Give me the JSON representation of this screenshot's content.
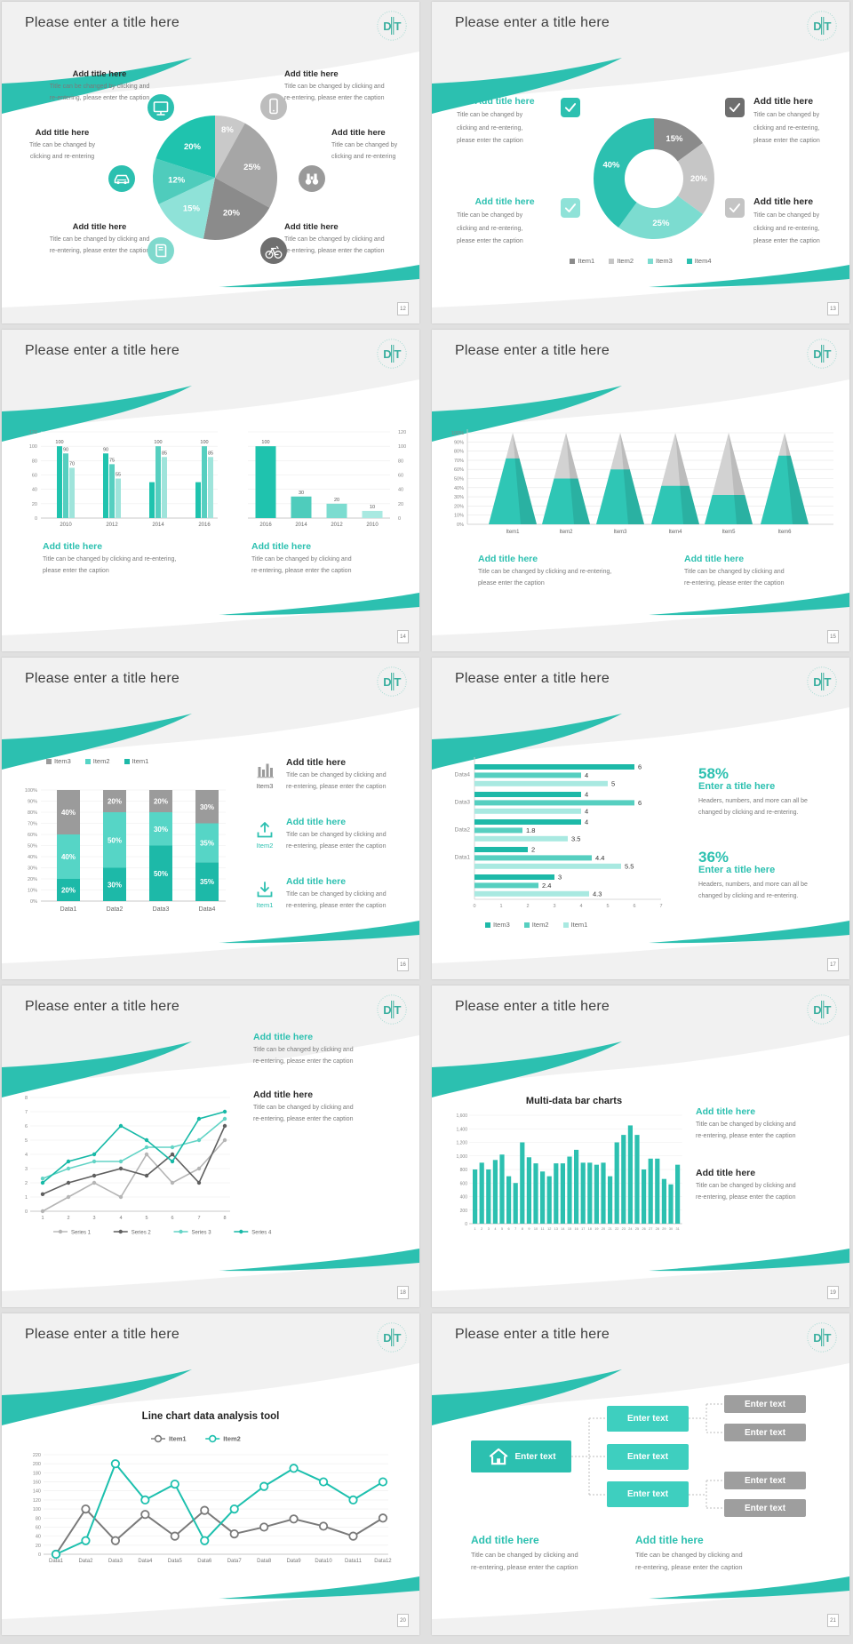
{
  "theme": {
    "accent": "#2cc0b0",
    "accent_mid": "#4fccbc",
    "accent_light": "#7cdcd0",
    "accent_lighter": "#a9e9e1",
    "gray_dark": "#6e6e6e",
    "gray_mid": "#9b9b9b",
    "gray_light": "#c7c7c7",
    "header_bg": "#f1f1f1",
    "title_color": "#3f3f3f",
    "caption_color": "#7a7a7a"
  },
  "strings": {
    "slide_title": "Please enter a title here",
    "add_title": "Add title here",
    "logo_monogram": "DT"
  },
  "pages": [
    "12",
    "13",
    "14",
    "15",
    "16",
    "17",
    "18",
    "19",
    "20",
    "21"
  ],
  "s1": {
    "callouts": [
      {
        "title": "Add title here",
        "lines": [
          "Title can be changed by clicking and",
          "re-entering, please enter the caption"
        ],
        "icon": "monitor",
        "icon_bg": "#2cc0b0"
      },
      {
        "title": "Add title here",
        "lines": [
          "Title can be changed by",
          "clicking and re-entering"
        ],
        "icon": "car",
        "icon_bg": "#2cc0b0"
      },
      {
        "title": "Add title here",
        "lines": [
          "Title can be changed by clicking and",
          "re-entering, please enter the caption"
        ],
        "icon": "book",
        "icon_bg": "#7fd9cd"
      },
      {
        "title": "Add title here",
        "lines": [
          "Title can be changed by clicking and",
          "re-entering, please enter the caption"
        ],
        "icon": "phone",
        "icon_bg": "#bdbdbd"
      },
      {
        "title": "Add title here",
        "lines": [
          "Title can be changed by",
          "clicking and re-entering"
        ],
        "icon": "binoculars",
        "icon_bg": "#9a9a9a"
      },
      {
        "title": "Add title here",
        "lines": [
          "Title can be changed by clicking and",
          "re-entering, please enter the caption"
        ],
        "icon": "bicycle",
        "icon_bg": "#6f6f6f"
      }
    ]
  },
  "s2": {
    "blocks": [
      {
        "title": "Add title here",
        "lines": [
          "Title can be changed by",
          "clicking and re-entering,",
          "please enter the caption"
        ],
        "icon": "check",
        "icon_bg": "#2cc0b0"
      },
      {
        "title": "Add title here",
        "lines": [
          "Title can be changed by",
          "clicking and re-entering,",
          "please enter the caption"
        ],
        "icon": "check",
        "icon_bg": "#6e6e6e"
      },
      {
        "title": "Add title here",
        "lines": [
          "Title can be changed by",
          "clicking and re-entering,",
          "please enter the caption"
        ],
        "icon": "check",
        "icon_bg": "#8fe2d8"
      },
      {
        "title": "Add title here",
        "lines": [
          "Title can be changed by",
          "clicking and re-entering,",
          "please enter the caption"
        ],
        "icon": "check",
        "icon_bg": "#c4c4c4"
      }
    ]
  },
  "s3": {
    "add1": {
      "title": "Add title here",
      "lines": [
        "Title can be changed by clicking and re-entering,",
        "please enter the caption"
      ]
    },
    "add2": {
      "title": "Add title here",
      "lines": [
        "Title can be changed by clicking and",
        "re-entering, please enter the caption"
      ]
    }
  },
  "s4": {
    "add1": {
      "title": "Add title here",
      "lines": [
        "Title can be changed by clicking and re-entering,",
        "please enter the caption"
      ]
    },
    "add2": {
      "title": "Add title here",
      "lines": [
        "Title can be changed by clicking and",
        "re-entering, please enter the caption"
      ]
    }
  },
  "s5": {
    "items": [
      {
        "label": "Item3",
        "title": "Add title here",
        "lines": [
          "Title can be changed by clicking and",
          "re-entering, please enter the caption"
        ],
        "icon": "barchart",
        "icon_color": "#9b9b9b",
        "title_color": "dark"
      },
      {
        "label": "Item2",
        "title": "Add title here",
        "lines": [
          "Title can be changed by clicking and",
          "re-entering, please enter the caption"
        ],
        "icon": "upload",
        "icon_color": "#2cc0b0",
        "title_color": "teal"
      },
      {
        "label": "Item1",
        "title": "Add title here",
        "lines": [
          "Title can be changed by clicking and",
          "re-entering, please enter the caption"
        ],
        "icon": "download",
        "icon_color": "#2cc0b0",
        "title_color": "teal"
      }
    ]
  },
  "s6": {
    "stats": [
      {
        "value": "58%",
        "title": "Enter a title here",
        "lines": [
          "Headers, numbers, and more can all be",
          "changed by clicking and re-entering."
        ]
      },
      {
        "value": "36%",
        "title": "Enter a title here",
        "lines": [
          "Headers, numbers, and more can all be",
          "changed by clicking and re-entering."
        ]
      }
    ]
  },
  "s7": {
    "blocks": [
      {
        "title": "Add title here",
        "lines": [
          "Title can be changed by clicking and",
          "re-entering, please enter the caption"
        ]
      },
      {
        "title": "Add title here",
        "lines": [
          "Title can be changed by clicking and",
          "re-entering, please enter the caption"
        ]
      }
    ]
  },
  "s8": {
    "blocks": [
      {
        "title": "Add title here",
        "lines": [
          "Title can be changed by clicking and",
          "re-entering, please enter the caption"
        ]
      },
      {
        "title": "Add title here",
        "lines": [
          "Title can be changed by clicking and",
          "re-entering, please enter the caption"
        ]
      }
    ]
  },
  "s10": {
    "root": "Enter text",
    "l2": [
      "Enter text",
      "Enter text",
      "Enter text"
    ],
    "l3": [
      "Enter text",
      "Enter text",
      "Enter text",
      "Enter text"
    ],
    "add1": {
      "title": "Add title here",
      "lines": [
        "Title can be changed by clicking and",
        "re-entering, please enter the caption"
      ]
    },
    "add2": {
      "title": "Add title here",
      "lines": [
        "Title can be changed by clicking and",
        "re-entering, please enter the caption"
      ]
    }
  },
  "chart_data": [
    {
      "slide": 1,
      "type": "pie",
      "values": [
        8,
        25,
        20,
        15,
        12,
        20
      ],
      "labels": [
        "8%",
        "25%",
        "20%",
        "15%",
        "12%",
        "20%"
      ],
      "colors": [
        "#c9c9c9",
        "#a6a6a6",
        "#8b8b8b",
        "#8fe2d8",
        "#4fccbc",
        "#1fc3ae"
      ],
      "start": "top",
      "direction": "clockwise"
    },
    {
      "slide": 2,
      "type": "donut",
      "values": [
        15,
        20,
        25,
        40
      ],
      "labels": [
        "15%",
        "20%",
        "25%",
        "40%"
      ],
      "colors": [
        "#8b8b8b",
        "#c6c6c6",
        "#7cdcd0",
        "#2cc0b0"
      ],
      "legend": [
        "Item1",
        "Item2",
        "Item3",
        "Item4"
      ]
    },
    {
      "slide": 3,
      "type": "bar",
      "position": "left",
      "categories": [
        "2010",
        "2012",
        "2014",
        "2016"
      ],
      "series": [
        {
          "color": "#1fc3ae",
          "values": [
            100,
            90,
            50,
            50
          ],
          "labels": [
            "100",
            "90",
            "",
            ""
          ]
        },
        {
          "color": "#56cfc0",
          "values": [
            90,
            75,
            100,
            100
          ],
          "labels": [
            "90",
            "75",
            "100",
            "100"
          ]
        },
        {
          "color": "#9fe4db",
          "values": [
            70,
            55,
            85,
            85
          ],
          "labels": [
            "70",
            "55",
            "85",
            "85"
          ]
        }
      ],
      "ylim": [
        0,
        120
      ],
      "yticks": [
        0,
        20,
        40,
        60,
        80,
        100,
        120
      ],
      "axis_side": "left",
      "grid": true
    },
    {
      "slide": 3,
      "type": "bar",
      "position": "right",
      "categories": [
        "2016",
        "2014",
        "2012",
        "2010"
      ],
      "values": [
        100,
        30,
        20,
        10
      ],
      "labels": [
        "100",
        "30",
        "20",
        "10"
      ],
      "bar_colors": [
        "#1fc3ae",
        "#4fccbc",
        "#7cdcd0",
        "#a9e9e1"
      ],
      "ylim": [
        0,
        120
      ],
      "yticks": [
        0,
        20,
        40,
        60,
        80,
        100,
        120
      ],
      "axis_side": "right",
      "grid": true
    },
    {
      "slide": 4,
      "type": "pyramid",
      "categories": [
        "Item1",
        "Item2",
        "Item3",
        "Item4",
        "Item5",
        "Item6"
      ],
      "fill_pct": [
        72,
        50,
        60,
        42,
        32,
        75
      ],
      "ylim": [
        0,
        100
      ],
      "yticks": [
        "0%",
        "10%",
        "20%",
        "30%",
        "40%",
        "50%",
        "60%",
        "70%",
        "80%",
        "90%",
        "100%"
      ],
      "fill_color": "#2fc6b5",
      "rest_color": "#d2d2d2",
      "grid": true
    },
    {
      "slide": 5,
      "type": "stacked_bar",
      "categories": [
        "Data1",
        "Data2",
        "Data3",
        "Data4"
      ],
      "series": [
        {
          "name": "Item1",
          "color": "#1db9a8",
          "values": [
            20,
            30,
            50,
            35
          ]
        },
        {
          "name": "Item2",
          "color": "#56d5c6",
          "values": [
            40,
            50,
            30,
            35
          ]
        },
        {
          "name": "Item3",
          "color": "#9b9b9b",
          "values": [
            40,
            20,
            20,
            30
          ]
        }
      ],
      "ylim": [
        0,
        100
      ],
      "yticks": [
        "0%",
        "10%",
        "20%",
        "30%",
        "40%",
        "50%",
        "60%",
        "70%",
        "80%",
        "90%",
        "100%"
      ],
      "legend_order": [
        "Item3",
        "Item2",
        "Item1"
      ],
      "labels_suffix": "%",
      "grid": true
    },
    {
      "slide": 6,
      "type": "hbar",
      "group_labels": [
        "Data4",
        "Data3",
        "Data2",
        "Data1",
        ""
      ],
      "groups": [
        [
          6,
          4,
          5
        ],
        [
          4,
          6,
          4
        ],
        [
          4,
          1.8,
          3.5
        ],
        [
          2,
          4.4,
          5.5
        ],
        [
          3,
          2.4,
          4.3
        ]
      ],
      "colors": [
        "#1db9a8",
        "#56cfc0",
        "#a9e9e1"
      ],
      "xlim": [
        0,
        7
      ],
      "xticks": [
        0,
        1,
        2,
        3,
        4,
        5,
        6,
        7
      ],
      "legend": [
        "Item3",
        "Item2",
        "Item1"
      ],
      "grid": false
    },
    {
      "slide": 7,
      "type": "line",
      "x": [
        1,
        2,
        3,
        4,
        5,
        6,
        7,
        8
      ],
      "ylim": [
        0,
        8
      ],
      "yticks": [
        0,
        1,
        2,
        3,
        4,
        5,
        6,
        7,
        8
      ],
      "series": [
        {
          "name": "Series 1",
          "color": "#b5b5b5",
          "values": [
            0,
            1,
            2,
            1,
            4,
            2,
            3,
            5
          ]
        },
        {
          "name": "Series 2",
          "color": "#5f5f5f",
          "values": [
            1.2,
            2,
            2.5,
            3,
            2.5,
            4,
            2,
            6
          ]
        },
        {
          "name": "Series 3",
          "color": "#63d4c6",
          "values": [
            2.3,
            3,
            3.5,
            3.5,
            4.5,
            4.5,
            5,
            6.5
          ]
        },
        {
          "name": "Series 4",
          "color": "#17b9a7",
          "values": [
            2,
            3.5,
            4,
            6,
            5,
            3.5,
            6.5,
            7
          ]
        }
      ],
      "marker": "dot",
      "legend_position": "bottom",
      "grid": true
    },
    {
      "slide": 8,
      "type": "bar",
      "title": "Multi-data bar charts",
      "color": "#2cc0b0",
      "x_labels": [
        "1",
        "2",
        "3",
        "4",
        "5",
        "6",
        "7",
        "8",
        "9",
        "10",
        "11",
        "12",
        "13",
        "14",
        "15",
        "16",
        "17",
        "18",
        "19",
        "20",
        "21",
        "22",
        "23",
        "24",
        "25",
        "26",
        "27",
        "28",
        "29",
        "30",
        "31"
      ],
      "values": [
        800,
        900,
        800,
        940,
        1020,
        700,
        600,
        1200,
        980,
        890,
        770,
        700,
        890,
        890,
        990,
        1090,
        900,
        900,
        870,
        900,
        700,
        1200,
        1310,
        1450,
        1310,
        800,
        960,
        960,
        660,
        580,
        870
      ],
      "ylim": [
        0,
        1600
      ],
      "yticks": [
        "0",
        "200",
        "400",
        "600",
        "800",
        "1,000",
        "1,200",
        "1,400",
        "1,600"
      ],
      "grid": true
    },
    {
      "slide": 9,
      "type": "line",
      "title": "Line chart data analysis tool",
      "x_labels": [
        "Data1",
        "Data2",
        "Data3",
        "Data4",
        "Data5",
        "Data6",
        "Data7",
        "Data8",
        "Data9",
        "Data10",
        "Data11",
        "Data12"
      ],
      "ylim": [
        0,
        220
      ],
      "ytick_step": 20,
      "series": [
        {
          "name": "Item1",
          "color": "#7a7a7a",
          "values": [
            0,
            100,
            30,
            88,
            40,
            97,
            45,
            60,
            78,
            62,
            40,
            80
          ]
        },
        {
          "name": "Item2",
          "color": "#1dc0ae",
          "values": [
            0,
            30,
            200,
            120,
            155,
            30,
            100,
            150,
            190,
            160,
            120,
            160
          ]
        }
      ],
      "marker": "open-circle",
      "legend_position": "top",
      "grid": true
    }
  ]
}
